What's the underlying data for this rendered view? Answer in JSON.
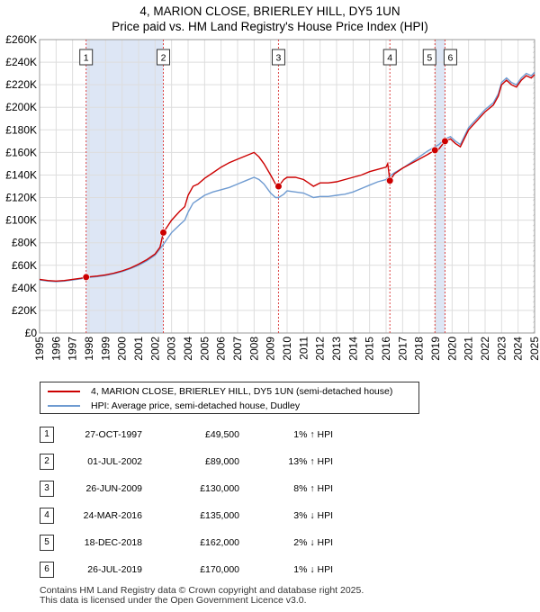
{
  "header": {
    "title_line1": "4, MARION CLOSE, BRIERLEY HILL, DY5 1UN",
    "title_line2": "Price paid vs. HM Land Registry's House Price Index (HPI)"
  },
  "colors": {
    "price_line": "#cc0000",
    "hpi_line": "#6f9bd1",
    "sale_band": "#dde6f5",
    "grid": "#dddddd",
    "marker_line": "#dd4444",
    "hatch": "#bbbbbb"
  },
  "chart_data": {
    "type": "line",
    "xlim": [
      1995,
      2025
    ],
    "ylim": [
      0,
      260000
    ],
    "x_ticks": [
      1995,
      1996,
      1997,
      1998,
      1999,
      2000,
      2001,
      2002,
      2003,
      2004,
      2005,
      2006,
      2007,
      2008,
      2009,
      2010,
      2011,
      2012,
      2013,
      2014,
      2015,
      2016,
      2017,
      2018,
      2019,
      2020,
      2021,
      2022,
      2023,
      2024,
      2025
    ],
    "y_ticks": [
      0,
      20000,
      40000,
      60000,
      80000,
      100000,
      120000,
      140000,
      160000,
      180000,
      200000,
      220000,
      240000,
      260000
    ],
    "y_tick_labels": [
      "£0",
      "£20K",
      "£40K",
      "£60K",
      "£80K",
      "£100K",
      "£120K",
      "£140K",
      "£160K",
      "£180K",
      "£200K",
      "£220K",
      "£240K",
      "£260K"
    ],
    "series": [
      {
        "name": "4, MARION CLOSE, BRIERLEY HILL, DY5 1UN (semi-detached house)",
        "color": "#cc0000",
        "points": [
          [
            1995.0,
            47500
          ],
          [
            1995.5,
            46500
          ],
          [
            1996.0,
            46000
          ],
          [
            1996.5,
            46500
          ],
          [
            1997.0,
            47500
          ],
          [
            1997.5,
            48500
          ],
          [
            1997.82,
            49500
          ],
          [
            1998.5,
            50500
          ],
          [
            1999.0,
            51500
          ],
          [
            1999.5,
            53000
          ],
          [
            2000.0,
            55000
          ],
          [
            2000.5,
            57500
          ],
          [
            2001.0,
            61000
          ],
          [
            2001.5,
            65000
          ],
          [
            2002.0,
            70000
          ],
          [
            2002.3,
            76000
          ],
          [
            2002.5,
            89000
          ],
          [
            2003.0,
            100000
          ],
          [
            2003.5,
            108000
          ],
          [
            2003.8,
            112000
          ],
          [
            2004.0,
            122000
          ],
          [
            2004.3,
            130000
          ],
          [
            2004.6,
            132000
          ],
          [
            2005.0,
            137000
          ],
          [
            2005.5,
            142000
          ],
          [
            2006.0,
            147000
          ],
          [
            2006.5,
            151000
          ],
          [
            2007.0,
            154000
          ],
          [
            2007.5,
            157000
          ],
          [
            2008.0,
            160000
          ],
          [
            2008.3,
            156000
          ],
          [
            2008.6,
            150000
          ],
          [
            2009.0,
            140000
          ],
          [
            2009.3,
            132000
          ],
          [
            2009.48,
            130000
          ],
          [
            2009.8,
            136000
          ],
          [
            2010.0,
            138000
          ],
          [
            2010.5,
            138000
          ],
          [
            2011.0,
            136000
          ],
          [
            2011.3,
            133000
          ],
          [
            2011.6,
            130000
          ],
          [
            2012.0,
            133000
          ],
          [
            2012.5,
            133000
          ],
          [
            2013.0,
            134000
          ],
          [
            2013.5,
            136000
          ],
          [
            2014.0,
            138000
          ],
          [
            2014.5,
            140000
          ],
          [
            2015.0,
            143000
          ],
          [
            2015.5,
            145000
          ],
          [
            2016.0,
            147000
          ],
          [
            2016.1,
            150000
          ],
          [
            2016.23,
            135000
          ],
          [
            2016.5,
            141000
          ],
          [
            2017.0,
            146000
          ],
          [
            2017.5,
            150000
          ],
          [
            2018.0,
            154000
          ],
          [
            2018.5,
            158000
          ],
          [
            2018.96,
            162000
          ],
          [
            2019.2,
            163000
          ],
          [
            2019.57,
            170000
          ],
          [
            2019.9,
            172000
          ],
          [
            2020.2,
            168000
          ],
          [
            2020.5,
            165000
          ],
          [
            2020.8,
            174000
          ],
          [
            2021.0,
            180000
          ],
          [
            2021.5,
            188000
          ],
          [
            2022.0,
            196000
          ],
          [
            2022.5,
            202000
          ],
          [
            2022.8,
            210000
          ],
          [
            2023.0,
            220000
          ],
          [
            2023.3,
            224000
          ],
          [
            2023.6,
            220000
          ],
          [
            2023.9,
            218000
          ],
          [
            2024.2,
            224000
          ],
          [
            2024.5,
            228000
          ],
          [
            2024.8,
            226000
          ],
          [
            2025.0,
            229000
          ]
        ]
      },
      {
        "name": "HPI: Average price, semi-detached house, Dudley",
        "color": "#6f9bd1",
        "points": [
          [
            1995.0,
            47000
          ],
          [
            1995.5,
            46000
          ],
          [
            1996.0,
            45500
          ],
          [
            1996.5,
            46000
          ],
          [
            1997.0,
            47000
          ],
          [
            1997.5,
            48000
          ],
          [
            1997.82,
            49000
          ],
          [
            1998.5,
            50000
          ],
          [
            1999.0,
            51000
          ],
          [
            1999.5,
            52500
          ],
          [
            2000.0,
            54500
          ],
          [
            2000.5,
            57000
          ],
          [
            2001.0,
            60000
          ],
          [
            2001.5,
            64000
          ],
          [
            2002.0,
            69000
          ],
          [
            2002.5,
            78500
          ],
          [
            2003.0,
            89000
          ],
          [
            2003.5,
            96000
          ],
          [
            2003.8,
            100000
          ],
          [
            2004.0,
            107000
          ],
          [
            2004.3,
            115000
          ],
          [
            2004.6,
            118000
          ],
          [
            2005.0,
            122000
          ],
          [
            2005.5,
            125000
          ],
          [
            2006.0,
            127000
          ],
          [
            2006.5,
            129000
          ],
          [
            2007.0,
            132000
          ],
          [
            2007.5,
            135000
          ],
          [
            2008.0,
            138000
          ],
          [
            2008.3,
            136000
          ],
          [
            2008.6,
            132000
          ],
          [
            2009.0,
            124000
          ],
          [
            2009.3,
            120000
          ],
          [
            2009.48,
            120000
          ],
          [
            2009.8,
            123000
          ],
          [
            2010.0,
            126000
          ],
          [
            2010.5,
            125000
          ],
          [
            2011.0,
            124000
          ],
          [
            2011.3,
            122000
          ],
          [
            2011.6,
            120000
          ],
          [
            2012.0,
            121000
          ],
          [
            2012.5,
            121000
          ],
          [
            2013.0,
            122000
          ],
          [
            2013.5,
            123000
          ],
          [
            2014.0,
            125000
          ],
          [
            2014.5,
            128000
          ],
          [
            2015.0,
            131000
          ],
          [
            2015.5,
            134000
          ],
          [
            2016.0,
            136000
          ],
          [
            2016.23,
            139000
          ],
          [
            2016.5,
            142000
          ],
          [
            2017.0,
            146000
          ],
          [
            2017.5,
            151000
          ],
          [
            2018.0,
            156000
          ],
          [
            2018.5,
            161000
          ],
          [
            2018.96,
            165000
          ],
          [
            2019.2,
            167000
          ],
          [
            2019.57,
            172000
          ],
          [
            2019.9,
            174000
          ],
          [
            2020.2,
            170000
          ],
          [
            2020.5,
            167000
          ],
          [
            2020.8,
            176000
          ],
          [
            2021.0,
            182000
          ],
          [
            2021.5,
            190000
          ],
          [
            2022.0,
            198000
          ],
          [
            2022.5,
            204000
          ],
          [
            2022.8,
            212000
          ],
          [
            2023.0,
            222000
          ],
          [
            2023.3,
            226000
          ],
          [
            2023.6,
            222000
          ],
          [
            2023.9,
            220000
          ],
          [
            2024.2,
            226000
          ],
          [
            2024.5,
            230000
          ],
          [
            2024.8,
            228000
          ],
          [
            2025.0,
            231000
          ]
        ]
      }
    ],
    "sales": [
      {
        "n": "1",
        "x": 1997.82,
        "y": 49500
      },
      {
        "n": "2",
        "x": 2002.5,
        "y": 89000
      },
      {
        "n": "3",
        "x": 2009.48,
        "y": 130000
      },
      {
        "n": "4",
        "x": 2016.23,
        "y": 135000
      },
      {
        "n": "5",
        "x": 2018.96,
        "y": 162000
      },
      {
        "n": "6",
        "x": 2019.57,
        "y": 170000
      }
    ],
    "legend": {
      "price_label": "4, MARION CLOSE, BRIERLEY HILL, DY5 1UN (semi-detached house)",
      "hpi_label": "HPI: Average price, semi-detached house, Dudley"
    }
  },
  "transactions": [
    {
      "n": "1",
      "date": "27-OCT-1997",
      "price": "£49,500",
      "hpi": "1% ↑ HPI"
    },
    {
      "n": "2",
      "date": "01-JUL-2002",
      "price": "£89,000",
      "hpi": "13% ↑ HPI"
    },
    {
      "n": "3",
      "date": "26-JUN-2009",
      "price": "£130,000",
      "hpi": "8% ↑ HPI"
    },
    {
      "n": "4",
      "date": "24-MAR-2016",
      "price": "£135,000",
      "hpi": "3% ↓ HPI"
    },
    {
      "n": "5",
      "date": "18-DEC-2018",
      "price": "£162,000",
      "hpi": "2% ↓ HPI"
    },
    {
      "n": "6",
      "date": "26-JUL-2019",
      "price": "£170,000",
      "hpi": "1% ↓ HPI"
    }
  ],
  "footer": {
    "line1": "Contains HM Land Registry data © Crown copyright and database right 2025.",
    "line2": "This data is licensed under the Open Government Licence v3.0."
  }
}
